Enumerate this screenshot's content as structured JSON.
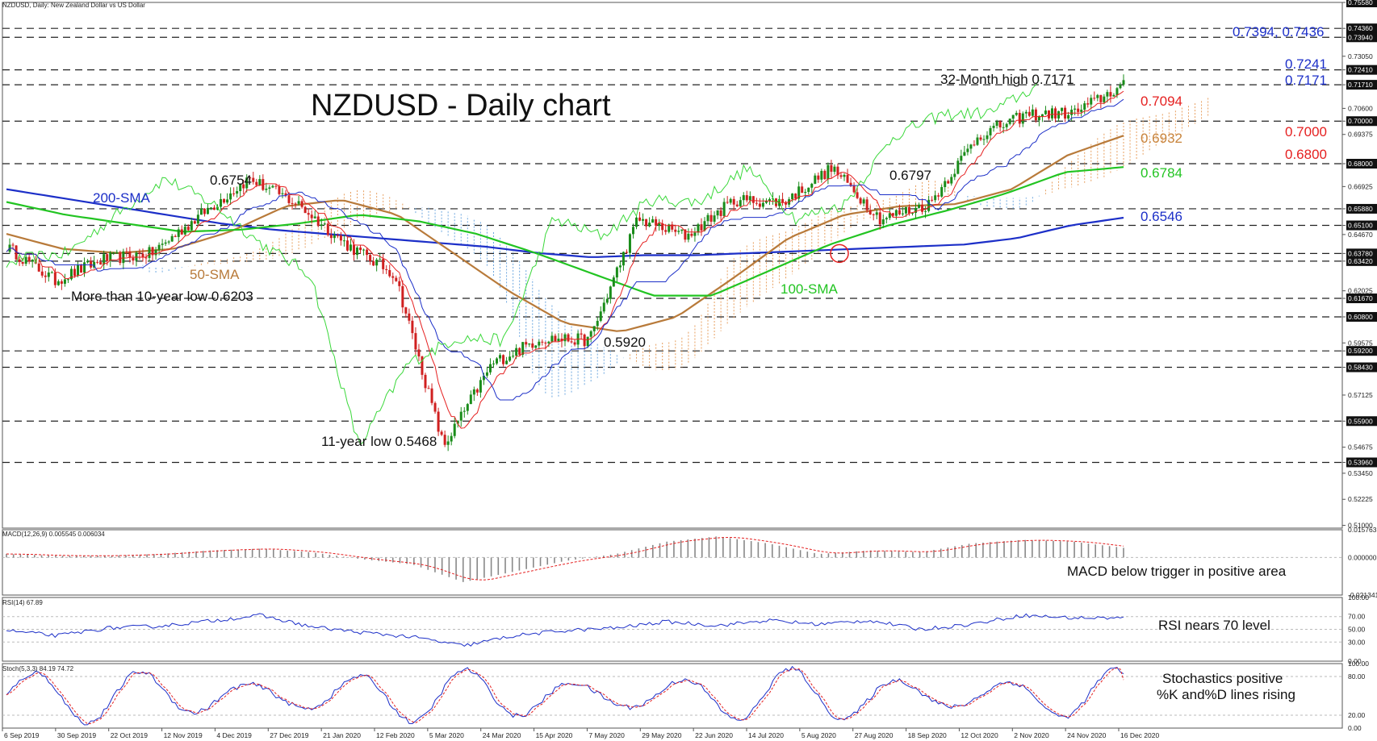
{
  "header": {
    "symbol_line": "NZDUSD, Daily:  New Zealand Dollar vs US Dollar"
  },
  "title": "NZDUSD - Daily chart",
  "chart_data": {
    "type": "line",
    "title": "NZDUSD - Daily chart",
    "price_axis": {
      "ylim": [
        0.5087,
        0.7558
      ],
      "ticks": [
        "0.75580",
        "0.74360",
        "0.73940",
        "0.73050",
        "0.72410",
        "0.71710",
        "0.70600",
        "0.70000",
        "0.69375",
        "0.68000",
        "0.66925",
        "0.65880",
        "0.65100",
        "0.64670",
        "0.63780",
        "0.63420",
        "0.62025",
        "0.61670",
        "0.60800",
        "0.59575",
        "0.59200",
        "0.58430",
        "0.57125",
        "0.55900",
        "0.54675",
        "0.53960",
        "0.53450",
        "0.52225",
        "0.51000"
      ],
      "highlight_ticks": [
        0.7558,
        0.7436,
        0.7394,
        0.7241,
        0.7171,
        0.7,
        0.68,
        0.6588,
        0.651,
        0.6378,
        0.6342,
        0.6167,
        0.608,
        0.592,
        0.5843,
        0.559,
        0.5396
      ]
    },
    "x_axis": {
      "tick_labels": [
        "6 Sep 2019",
        "30 Sep 2019",
        "22 Oct 2019",
        "12 Nov 2019",
        "4 Dec 2019",
        "27 Dec 2019",
        "21 Jan 2020",
        "12 Feb 2020",
        "5 Mar 2020",
        "24 Mar 2020",
        "15 Apr 2020",
        "7 May 2020",
        "29 May 2020",
        "22 Jun 2020",
        "14 Jul 2020",
        "5 Aug 2020",
        "27 Aug 2020",
        "18 Sep 2020",
        "12 Oct 2020",
        "2 Nov 2020",
        "24 Nov 2020",
        "16 Dec 2020"
      ]
    },
    "horizontal_levels": [
      0.7436,
      0.7394,
      0.7241,
      0.7171,
      0.7,
      0.68,
      0.6588,
      0.651,
      0.6378,
      0.6342,
      0.6167,
      0.608,
      0.592,
      0.5843,
      0.559,
      0.5396
    ],
    "price_series": {
      "name": "",
      "x": [
        "6 Sep 2019",
        "30 Sep 2019",
        "22 Oct 2019",
        "12 Nov 2019",
        "4 Dec 2019",
        "27 Dec 2019",
        "21 Jan 2020",
        "12 Feb 2020",
        "5 Mar 2020",
        "19 Mar 2020",
        "24 Mar 2020",
        "15 Apr 2020",
        "7 May 2020",
        "29 May 2020",
        "22 Jun 2020",
        "14 Jul 2020",
        "5 Aug 2020",
        "27 Aug 2020",
        "18 Sep 2020",
        "12 Oct 2020",
        "2 Nov 2020",
        "24 Nov 2020",
        "16 Dec 2020",
        "24 Dec 2020"
      ],
      "values": [
        0.641,
        0.625,
        0.635,
        0.638,
        0.656,
        0.673,
        0.661,
        0.642,
        0.628,
        0.547,
        0.586,
        0.598,
        0.597,
        0.654,
        0.646,
        0.663,
        0.662,
        0.678,
        0.654,
        0.661,
        0.693,
        0.703,
        0.704,
        0.717
      ]
    },
    "moving_averages": [
      {
        "name": "200-SMA",
        "color": "#1c2fc8",
        "values": [
          0.668,
          0.664,
          0.66,
          0.656,
          0.652,
          0.649,
          0.647,
          0.645,
          0.643,
          0.641,
          0.638,
          0.636,
          0.637,
          0.637,
          0.638,
          0.639,
          0.64,
          0.641,
          0.642,
          0.645,
          0.651,
          0.6546
        ]
      },
      {
        "name": "50-SMA",
        "color": "#b87a3a",
        "values": [
          0.647,
          0.64,
          0.638,
          0.64,
          0.648,
          0.66,
          0.663,
          0.656,
          0.638,
          0.62,
          0.605,
          0.601,
          0.608,
          0.626,
          0.645,
          0.656,
          0.66,
          0.661,
          0.668,
          0.684,
          0.6932
        ]
      },
      {
        "name": "100-SMA",
        "color": "#22c422",
        "values": [
          0.662,
          0.656,
          0.652,
          0.648,
          0.649,
          0.652,
          0.656,
          0.653,
          0.647,
          0.638,
          0.628,
          0.618,
          0.618,
          0.63,
          0.642,
          0.651,
          0.658,
          0.666,
          0.676,
          0.6784
        ]
      }
    ],
    "annotations": [
      {
        "text": "0.6754",
        "value": 0.6754,
        "date": "22 Dec 2019"
      },
      {
        "text": "200-SMA",
        "color": "#1c2fc8"
      },
      {
        "text": "50-SMA",
        "color": "#b87a3a"
      },
      {
        "text": "More than 10-year low 0.6203",
        "value": 0.6203
      },
      {
        "text": "11-year low 0.5468",
        "value": 0.5468,
        "date": "19 Mar 2020"
      },
      {
        "text": "0.5920",
        "value": 0.592,
        "date": "11 May 2020"
      },
      {
        "text": "100-SMA",
        "color": "#22c422"
      },
      {
        "text": "0.6797",
        "value": 0.6797,
        "date": "1 Sep 2020"
      },
      {
        "text": "32-Month high 0.7171",
        "value": 0.7171,
        "date": "24 Dec 2020"
      }
    ],
    "right_labels": [
      {
        "text": "0.7394, 0.7436",
        "color": "#1c2fc8"
      },
      {
        "text": "0.7241",
        "color": "#1c2fc8"
      },
      {
        "text": "0.7171",
        "color": "#1c2fc8"
      },
      {
        "text": "0.7094",
        "color": "#e52020"
      },
      {
        "text": "0.7000",
        "color": "#e52020"
      },
      {
        "text": "0.6932",
        "color": "#c8843c"
      },
      {
        "text": "0.6800",
        "color": "#e52020"
      },
      {
        "text": "0.6784",
        "color": "#22c422"
      },
      {
        "text": "0.6546",
        "color": "#1c2fc8"
      }
    ],
    "macd": {
      "header": "MACD(12,26,9) 0.005545 0.006034",
      "ticks": [
        "0.015763",
        "0.000000",
        "-0.021341"
      ],
      "ylim": [
        -0.021341,
        0.015763
      ],
      "values": [
        0.002,
        0.001,
        0.001,
        0.002,
        0.004,
        0.005,
        0.003,
        -0.001,
        -0.004,
        -0.014,
        -0.008,
        -0.002,
        0.002,
        0.009,
        0.012,
        0.008,
        0.002,
        0.004,
        0.003,
        0.008,
        0.01,
        0.009,
        0.0055
      ],
      "comment": "MACD below trigger in positive area"
    },
    "rsi": {
      "header": "RSI(14) 67.89",
      "ticks": [
        "100.00",
        "70.00",
        "50.00",
        "30.00",
        "0.00"
      ],
      "ylim": [
        0,
        100
      ],
      "values": [
        48,
        40,
        52,
        55,
        63,
        72,
        54,
        45,
        38,
        24,
        40,
        48,
        52,
        62,
        56,
        64,
        58,
        64,
        50,
        58,
        72,
        68,
        67.89
      ],
      "comment": "RSI nears 70 level"
    },
    "stochastic": {
      "header": "Stoch(5,3,3) 84.19 74.72",
      "ticks": [
        "100.00",
        "80.00",
        "20.00",
        "0.00"
      ],
      "ylim": [
        0,
        100
      ],
      "comment_line1": "Stochastics positive",
      "comment_line2": "%K and%D lines rising",
      "k_value": 84.19,
      "d_value": 74.72
    }
  },
  "colors": {
    "price": "#1a1a1a",
    "up_candle": "#1a8c1a",
    "down_candle": "#d02020",
    "tenkan": "#e52020",
    "kijun": "#1c2fc8",
    "chikou": "#3ad83a",
    "cloud_bull": "#e8a060",
    "cloud_bear": "#6fa8e0"
  }
}
